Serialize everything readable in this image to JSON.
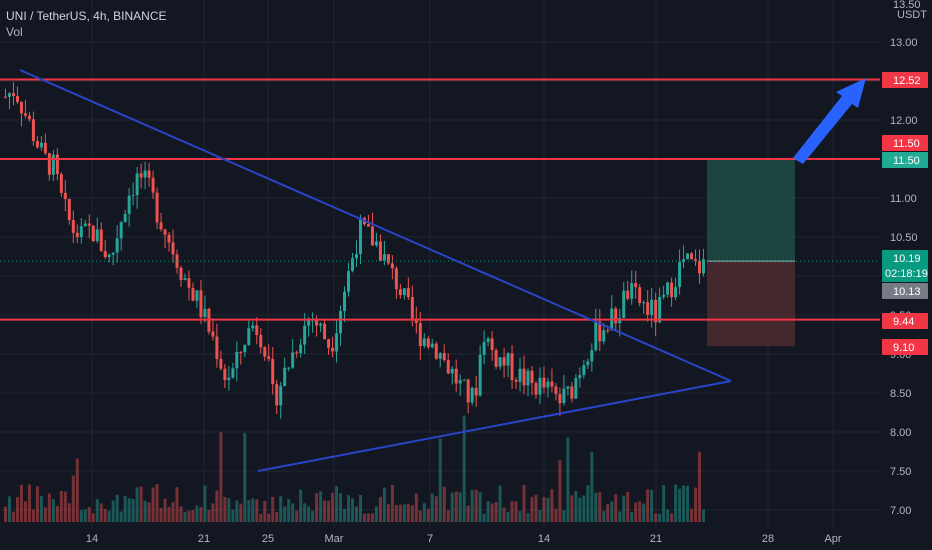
{
  "header": {
    "symbol_line": "UNI / TetherUS, 4h, BINANCE",
    "volume_label": "Vol"
  },
  "price_axis": {
    "currency": "USDT",
    "top_partial_label": "13.50"
  },
  "colors": {
    "background": "#131722",
    "up": "#26a69a",
    "down": "#ef5350",
    "level_line": "#f23645",
    "trend_line": "#2a44c9",
    "arrow": "#2962ff",
    "long_target_zone": "#1e4a44",
    "long_stop_zone": "#4a2a30",
    "tag_red": "#f23645",
    "tag_green": "#22ab94",
    "tag_gray": "#787b86",
    "tag_teal": "#089981"
  },
  "price_tags": [
    {
      "label": "12.52",
      "price": 12.52,
      "color": "#f23645"
    },
    {
      "label": "11.50",
      "price": 11.5,
      "color": "#f23645"
    },
    {
      "label": "11.50",
      "price": 11.5,
      "color": "#22ab94"
    },
    {
      "label": "10.19",
      "sub": "02:18:19",
      "price": 10.19,
      "color": "#089981"
    },
    {
      "label": "10.13",
      "price": 10.13,
      "color": "#787b86"
    },
    {
      "label": "9.44",
      "price": 9.44,
      "color": "#f23645"
    },
    {
      "label": "9.10",
      "price": 9.1,
      "color": "#f23645"
    }
  ],
  "horizontal_levels": [
    12.52,
    11.5,
    9.44
  ],
  "current_price": 10.19,
  "position_tool": {
    "entry": 10.19,
    "target": 11.5,
    "stop": 9.1
  },
  "chart_data": {
    "type": "candlestick",
    "y_ticks": [
      "13.00",
      "12.50",
      "12.00",
      "11.50",
      "11.00",
      "10.50",
      "10.00",
      "9.50",
      "9.00",
      "8.50",
      "8.00",
      "7.50",
      "7.00"
    ],
    "ylim": [
      6.9,
      13.5
    ],
    "x_ticks": [
      "14",
      "21",
      "25",
      "Mar",
      "7",
      "14",
      "21",
      "28",
      "Apr"
    ],
    "candles_4h_close": [
      12.3,
      12.4,
      12.1,
      11.8,
      11.5,
      11.4,
      10.9,
      10.6,
      10.5,
      10.6,
      10.4,
      10.2,
      10.7,
      11.1,
      11.3,
      11.1,
      10.8,
      10.5,
      10.2,
      9.9,
      9.7,
      9.4,
      9.1,
      8.7,
      8.8,
      9.2,
      9.4,
      9.2,
      8.4,
      8.7,
      9.0,
      9.3,
      9.5,
      9.3,
      9.1,
      9.6,
      10.1,
      10.6,
      10.5,
      10.4,
      10.1,
      9.9,
      9.6,
      9.3,
      9.2,
      9.1,
      8.9,
      8.7,
      8.5,
      8.4,
      9.3,
      9.0,
      8.9,
      8.8,
      8.7,
      8.6,
      8.6,
      8.5,
      8.4,
      8.5,
      8.8,
      9.1,
      9.3,
      9.4,
      9.5,
      9.8,
      9.7,
      9.6,
      9.5,
      9.7,
      10.0,
      10.2,
      10.1,
      10.13
    ],
    "volume_bars": "shown at bottom, relative heights only"
  }
}
